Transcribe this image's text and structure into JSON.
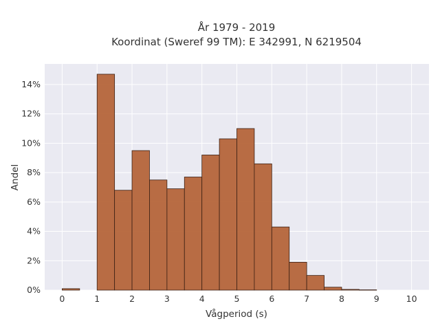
{
  "chart_data": {
    "type": "bar",
    "title_lines": [
      "År 1979 - 2019",
      "Koordinat (Sweref 99 TM): E 342991, N 6219504"
    ],
    "xlabel": "Vågperiod (s)",
    "ylabel": "Andel",
    "xlim": [
      -0.5,
      10.5
    ],
    "ylim": [
      0,
      15.4
    ],
    "x_ticks": [
      {
        "value": 0,
        "label": "0"
      },
      {
        "value": 1,
        "label": "1"
      },
      {
        "value": 2,
        "label": "2"
      },
      {
        "value": 3,
        "label": "3"
      },
      {
        "value": 4,
        "label": "4"
      },
      {
        "value": 5,
        "label": "5"
      },
      {
        "value": 6,
        "label": "6"
      },
      {
        "value": 7,
        "label": "7"
      },
      {
        "value": 8,
        "label": "8"
      },
      {
        "value": 9,
        "label": "9"
      },
      {
        "value": 10,
        "label": "10"
      }
    ],
    "y_ticks": [
      {
        "value": 0,
        "label": "0%"
      },
      {
        "value": 2,
        "label": "2%"
      },
      {
        "value": 4,
        "label": "4%"
      },
      {
        "value": 6,
        "label": "6%"
      },
      {
        "value": 8,
        "label": "8%"
      },
      {
        "value": 10,
        "label": "10%"
      },
      {
        "value": 12,
        "label": "12%"
      },
      {
        "value": 14,
        "label": "14%"
      }
    ],
    "grid": true,
    "bin_width": 0.5,
    "bins": [
      {
        "start": 0.0,
        "value": 0.1
      },
      {
        "start": 1.0,
        "value": 14.7
      },
      {
        "start": 1.5,
        "value": 6.8
      },
      {
        "start": 2.0,
        "value": 9.5
      },
      {
        "start": 2.5,
        "value": 7.5
      },
      {
        "start": 3.0,
        "value": 6.9
      },
      {
        "start": 3.5,
        "value": 7.7
      },
      {
        "start": 4.0,
        "value": 9.2
      },
      {
        "start": 4.5,
        "value": 10.3
      },
      {
        "start": 5.0,
        "value": 11.0
      },
      {
        "start": 5.5,
        "value": 8.6
      },
      {
        "start": 6.0,
        "value": 4.3
      },
      {
        "start": 6.5,
        "value": 1.9
      },
      {
        "start": 7.0,
        "value": 1.0
      },
      {
        "start": 7.5,
        "value": 0.2
      },
      {
        "start": 8.0,
        "value": 0.05
      },
      {
        "start": 8.5,
        "value": 0.02
      }
    ],
    "colors": {
      "bar_fill": "#b5653a",
      "bar_stroke": "#3a2014",
      "plot_bg": "#eaeaf2",
      "grid": "#ffffff",
      "text": "#333333"
    }
  }
}
